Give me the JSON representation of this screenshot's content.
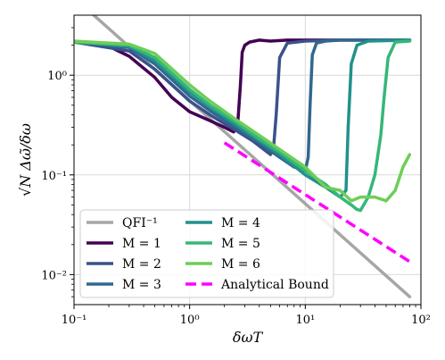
{
  "chart_data": {
    "type": "line",
    "xlabel": "δωT",
    "ylabel": "√N Δω̃/δω",
    "x_scale": "log",
    "y_scale": "log",
    "xlim": [
      0.1,
      100
    ],
    "ylim": [
      0.005,
      4
    ],
    "grid": true,
    "legend_position": "bottom-left",
    "legend_columns": 2,
    "x_ticks": [
      {
        "value": 0.1,
        "label": "10⁻¹"
      },
      {
        "value": 1,
        "label": "10⁰"
      },
      {
        "value": 10,
        "label": "10¹"
      },
      {
        "value": 100,
        "label": "10²"
      }
    ],
    "y_ticks": [
      {
        "value": 0.01,
        "label": "10⁻²"
      },
      {
        "value": 0.1,
        "label": "10⁻¹"
      },
      {
        "value": 1,
        "label": "10⁰"
      }
    ],
    "series": [
      {
        "name": "QFI⁻¹",
        "color": "#a6a6a6",
        "dash": "solid",
        "x": [
          0.1,
          80
        ],
        "y": [
          6.0,
          0.006
        ]
      },
      {
        "name": "M = 1",
        "color": "#440154",
        "dash": "solid",
        "x": [
          0.1,
          0.2,
          0.3,
          0.5,
          0.7,
          1.0,
          1.5,
          2.0,
          2.4,
          2.6,
          2.75,
          2.85,
          3.0,
          3.3,
          4.0,
          5.0,
          7.0,
          10.0,
          20.0,
          40.0,
          80.0
        ],
        "y": [
          2.15,
          1.95,
          1.55,
          0.95,
          0.6,
          0.43,
          0.35,
          0.3,
          0.27,
          0.32,
          0.8,
          1.7,
          2.0,
          2.15,
          2.25,
          2.2,
          2.25,
          2.25,
          2.25,
          2.25,
          2.25
        ]
      },
      {
        "name": "M = 2",
        "color": "#3b528b",
        "dash": "solid",
        "x": [
          0.1,
          0.3,
          0.5,
          1.0,
          1.5,
          2.5,
          3.5,
          5.0,
          5.3,
          5.6,
          6.0,
          7.0,
          10.0,
          20.0,
          40.0,
          80.0
        ],
        "y": [
          2.15,
          1.75,
          1.15,
          0.55,
          0.4,
          0.28,
          0.22,
          0.16,
          0.18,
          0.4,
          1.5,
          2.1,
          2.2,
          2.25,
          2.25,
          2.25
        ]
      },
      {
        "name": "M = 3",
        "color": "#31688e",
        "dash": "solid",
        "x": [
          0.1,
          0.3,
          0.5,
          1.0,
          1.5,
          2.5,
          4.0,
          6.0,
          8.0,
          10.0,
          10.6,
          11.0,
          11.5,
          12.5,
          15.0,
          20.0,
          40.0,
          80.0
        ],
        "y": [
          2.15,
          1.9,
          1.3,
          0.62,
          0.44,
          0.3,
          0.21,
          0.15,
          0.12,
          0.11,
          0.15,
          0.5,
          1.6,
          2.1,
          2.2,
          2.25,
          2.25,
          2.25
        ]
      },
      {
        "name": "M = 4",
        "color": "#21918c",
        "dash": "solid",
        "x": [
          0.1,
          0.3,
          0.5,
          1.0,
          1.5,
          2.5,
          4.0,
          6.0,
          10.0,
          15.0,
          20.0,
          22.5,
          23.5,
          25.0,
          28.0,
          35.0,
          80.0
        ],
        "y": [
          2.15,
          1.95,
          1.4,
          0.68,
          0.48,
          0.32,
          0.22,
          0.16,
          0.1,
          0.075,
          0.06,
          0.07,
          0.3,
          1.3,
          2.0,
          2.2,
          2.25
        ]
      },
      {
        "name": "M = 5",
        "color": "#35b779",
        "dash": "solid",
        "x": [
          0.1,
          0.3,
          0.5,
          1.0,
          1.5,
          2.5,
          4.0,
          6.0,
          10.0,
          15.0,
          20.0,
          25.0,
          28.0,
          30.0,
          35.0,
          40.0,
          45.0,
          48.0,
          52.0,
          60.0,
          80.0
        ],
        "y": [
          2.15,
          2.0,
          1.5,
          0.72,
          0.5,
          0.34,
          0.23,
          0.17,
          0.11,
          0.08,
          0.06,
          0.05,
          0.045,
          0.044,
          0.06,
          0.1,
          0.25,
          0.6,
          1.5,
          2.15,
          2.2
        ]
      },
      {
        "name": "M = 6",
        "color": "#6ece58",
        "dash": "solid",
        "x": [
          0.1,
          0.3,
          0.5,
          1.0,
          1.5,
          2.5,
          4.0,
          6.0,
          10.0,
          15.0,
          20.0,
          25.0,
          30.0,
          40.0,
          50.0,
          60.0,
          70.0,
          80.0
        ],
        "y": [
          2.2,
          2.05,
          1.65,
          0.8,
          0.55,
          0.36,
          0.25,
          0.18,
          0.12,
          0.075,
          0.07,
          0.055,
          0.06,
          0.06,
          0.055,
          0.07,
          0.12,
          0.16
        ]
      },
      {
        "name": "Analytical Bound",
        "color": "#ff00ff",
        "dash": "dashed",
        "x": [
          2.0,
          80.0
        ],
        "y": [
          0.21,
          0.0135
        ]
      }
    ]
  }
}
